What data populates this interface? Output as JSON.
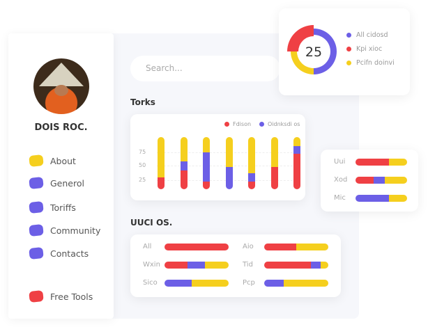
{
  "colors": {
    "red": "#ef4044",
    "purple": "#6c5fe6",
    "yellow": "#f5cf1e"
  },
  "profile": {
    "name": "DOIS ROC."
  },
  "sidebar": {
    "items": [
      {
        "label": "About",
        "color": "#f5cf1e"
      },
      {
        "label": "Generol",
        "color": "#6c5fe6"
      },
      {
        "label": "Toriffs",
        "color": "#6c5fe6"
      },
      {
        "label": "Community",
        "color": "#6c5fe6"
      },
      {
        "label": "Contacts",
        "color": "#6c5fe6"
      },
      {
        "label": "Free Tools",
        "color": "#ef4044"
      }
    ]
  },
  "search": {
    "placeholder": "Search..."
  },
  "torks": {
    "title": "Torks"
  },
  "uuci": {
    "title": "UUCI OS."
  },
  "chart_data": [
    {
      "type": "bar",
      "stacked": true,
      "legend": [
        "Fdison",
        "Oidnksdi os"
      ],
      "yticks": [
        25,
        50,
        75
      ],
      "grid": true,
      "legend_position": "top-right",
      "series_order": [
        "red",
        "purple",
        "yellow"
      ],
      "bars": [
        [
          23,
          0,
          77
        ],
        [
          36,
          18,
          46
        ],
        [
          15,
          56,
          29
        ],
        [
          0,
          43,
          57
        ],
        [
          15,
          16,
          69
        ],
        [
          43,
          0,
          57
        ],
        [
          68,
          15,
          17
        ]
      ]
    },
    {
      "type": "pie",
      "donut": true,
      "center_label": "25",
      "slices": [
        {
          "name": "All cidosd",
          "value": 50,
          "color": "#6c5fe6"
        },
        {
          "name": "Pcifn doinvi",
          "value": 25,
          "color": "#f5cf1e"
        },
        {
          "name": "Kpi xioc",
          "value": 25,
          "color": "#ef4044"
        }
      ],
      "legend": [
        "All cidosd",
        "Kpi xioc",
        "Pcifn doinvi"
      ]
    },
    {
      "type": "bar",
      "orientation": "horizontal",
      "stacked": true,
      "rows": [
        {
          "label": "Uui",
          "values": [
            65,
            0,
            35
          ]
        },
        {
          "label": "Xod",
          "values": [
            35,
            22,
            43
          ]
        },
        {
          "label": "Mic",
          "values": [
            0,
            65,
            35
          ]
        }
      ]
    },
    {
      "type": "bar",
      "orientation": "horizontal",
      "stacked": true,
      "rows": [
        {
          "label": "All",
          "values": [
            100,
            0,
            0
          ]
        },
        {
          "label": "Wxin",
          "values": [
            36,
            27,
            37
          ]
        },
        {
          "label": "Sico",
          "values": [
            0,
            42,
            58
          ]
        },
        {
          "label": "Aio",
          "values": [
            50,
            0,
            50
          ]
        },
        {
          "label": "Tid",
          "values": [
            73,
            15,
            12
          ]
        },
        {
          "label": "Pcp",
          "values": [
            0,
            30,
            70
          ]
        }
      ]
    }
  ]
}
